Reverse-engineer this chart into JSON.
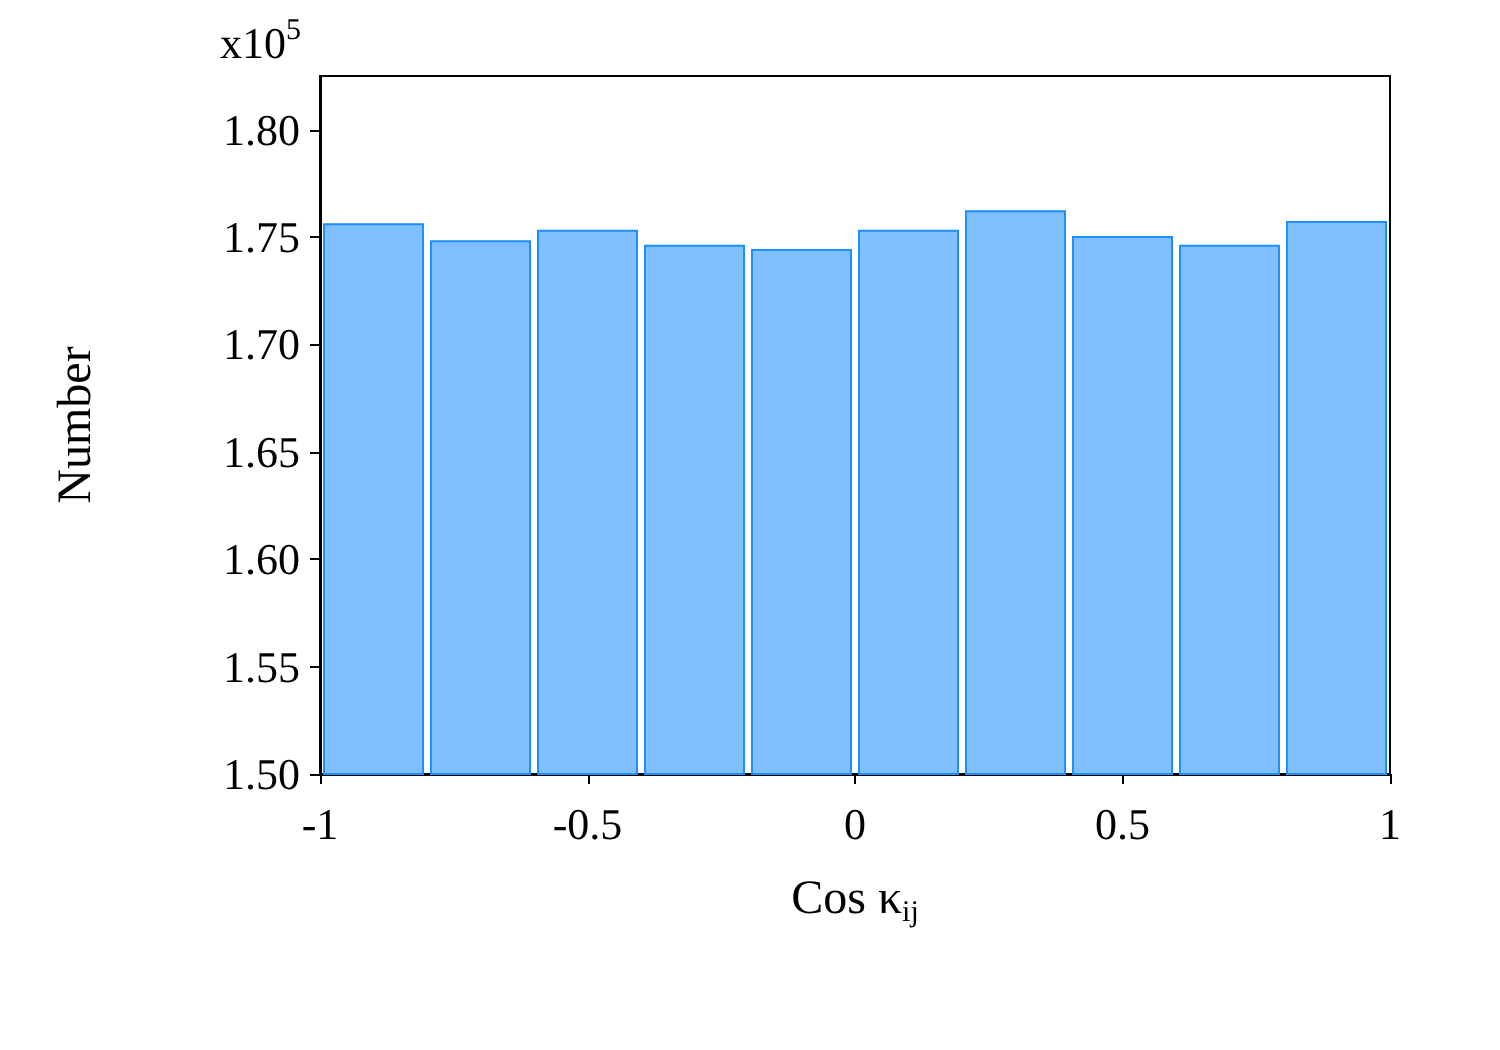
{
  "chart_data": {
    "type": "histogram",
    "bins": [
      -1,
      -0.8,
      -0.6,
      -0.4,
      -0.2,
      0,
      0.2,
      0.4,
      0.6,
      0.8,
      1
    ],
    "values": [
      1.756,
      1.748,
      1.753,
      1.746,
      1.744,
      1.753,
      1.762,
      1.75,
      1.746,
      1.757
    ],
    "color": "#80bfff",
    "xlabel": "Cos κ$_{ij}$",
    "ylabel": "Number",
    "annotations": [
      "x10$^{5}$"
    ],
    "xlim": [
      -1,
      1
    ],
    "xticks": [
      -1,
      -0.5,
      0,
      0.5,
      1
    ],
    "ylim": [
      1.5,
      1.825
    ],
    "yticks": [
      {
        "value": 1.5,
        "label": "1.50"
      },
      {
        "value": 1.55,
        "label": "1.55"
      },
      {
        "value": 1.6,
        "label": "1.60"
      },
      {
        "value": 1.65,
        "label": "1.65"
      },
      {
        "value": 1.7,
        "label": "1.70"
      },
      {
        "value": 1.75,
        "label": "1.75"
      },
      {
        "value": 1.8,
        "label": "1.80"
      }
    ],
    "grid": false
  }
}
